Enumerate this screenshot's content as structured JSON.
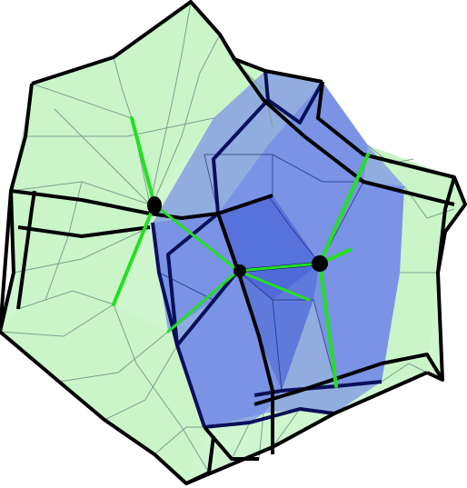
{
  "figure": {
    "kind": "3D polyhedral wireframe rendering",
    "outer_shell": {
      "fill": "#c8f5c8",
      "edge": "#000000",
      "mesh": "#7f9f8f"
    },
    "inner_solid": {
      "fill": "#6f86e6",
      "deep_fill": "#4a64d8",
      "edge": "#0a0f5a"
    },
    "axes": {
      "color": "#22e022"
    },
    "nodes": {
      "color": "#000000"
    }
  }
}
